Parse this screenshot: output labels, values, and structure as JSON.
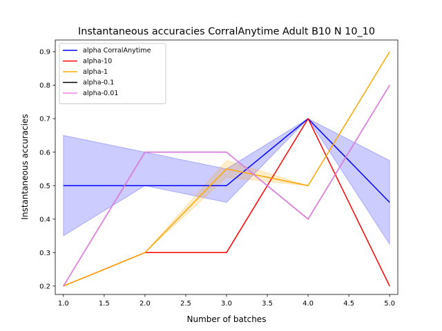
{
  "chart_data": {
    "type": "line",
    "title": "Instantaneous accuracies CorralAnytime Adult B10 N 10_10",
    "xlabel": "Number of batches",
    "ylabel": "Instantaneous accuracies",
    "xlim": [
      0.9,
      5.1
    ],
    "ylim": [
      0.175,
      0.935
    ],
    "xticks": [
      1.0,
      1.5,
      2.0,
      2.5,
      3.0,
      3.5,
      4.0,
      4.5,
      5.0
    ],
    "xtick_labels": [
      "1.0",
      "1.5",
      "2.0",
      "2.5",
      "3.0",
      "3.5",
      "4.0",
      "4.5",
      "5.0"
    ],
    "yticks": [
      0.2,
      0.3,
      0.4,
      0.5,
      0.6,
      0.7,
      0.8,
      0.9
    ],
    "ytick_labels": [
      "0.2",
      "0.3",
      "0.4",
      "0.5",
      "0.6",
      "0.7",
      "0.8",
      "0.9"
    ],
    "grid": false,
    "legend_position": "top-left",
    "x": [
      1,
      2,
      3,
      4,
      5
    ],
    "series": [
      {
        "name": "alpha CorralAnytime",
        "color": "#0000ff",
        "values": [
          0.5,
          0.5,
          0.5,
          0.7,
          0.45
        ],
        "band_lower": [
          0.35,
          0.5,
          0.45,
          0.7,
          0.325
        ],
        "band_upper": [
          0.65,
          0.6,
          0.55,
          0.7,
          0.575
        ]
      },
      {
        "name": "alpha-10",
        "color": "#ff0000",
        "values": [
          0.2,
          0.3,
          0.3,
          0.7,
          0.2
        ]
      },
      {
        "name": "alpha-1",
        "color": "#ffa500",
        "values": [
          0.2,
          0.3,
          0.55,
          0.5,
          0.9
        ],
        "band_lower": [
          0.2,
          0.3,
          0.525,
          0.5,
          0.9
        ],
        "band_upper": [
          0.2,
          0.3,
          0.575,
          0.5,
          0.9
        ]
      },
      {
        "name": "alpha-0.1",
        "color": "#000000",
        "values": [
          0.2,
          0.6,
          0.6,
          0.4,
          0.8
        ]
      },
      {
        "name": "alpha-0.01",
        "color": "#ee82ee",
        "values": [
          0.2,
          0.6,
          0.6,
          0.4,
          0.8
        ]
      }
    ]
  }
}
